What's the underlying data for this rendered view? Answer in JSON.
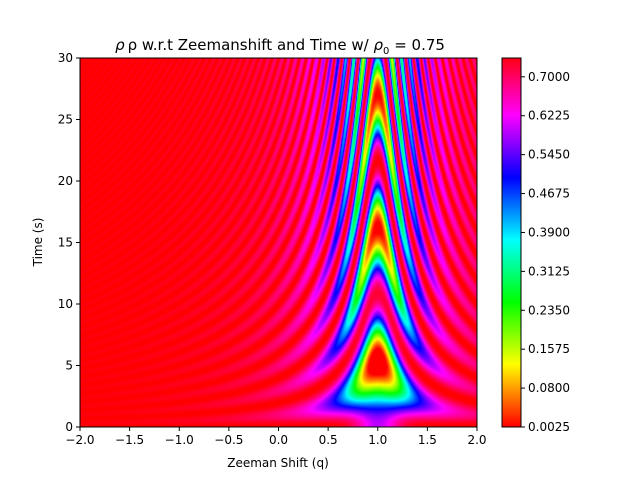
{
  "chart_data": {
    "type": "heatmap",
    "title_main": "ρ w.r.t Zeemanshift and Time w/ ",
    "title_rho": "ρ",
    "title_sub": "0",
    "title_tail": " = 0.75",
    "xlabel": "Zeeman Shift (q)",
    "ylabel": "Time (s)",
    "xlim": [
      -2.0,
      2.0
    ],
    "ylim": [
      0,
      30
    ],
    "x_ticks": [
      "−2.0",
      "−1.5",
      "−1.0",
      "−0.5",
      "0.0",
      "0.5",
      "1.0",
      "1.5",
      "2.0"
    ],
    "y_ticks": [
      "0",
      "5",
      "10",
      "15",
      "20",
      "25",
      "30"
    ],
    "colorbar": {
      "range": [
        0.0025,
        0.7375
      ],
      "ticks": [
        "0.0025",
        "0.0800",
        "0.1575",
        "0.2350",
        "0.3125",
        "0.3900",
        "0.4675",
        "0.5450",
        "0.6225",
        "0.7000"
      ],
      "colormap": "hsv"
    },
    "rho0": 0.75
  }
}
